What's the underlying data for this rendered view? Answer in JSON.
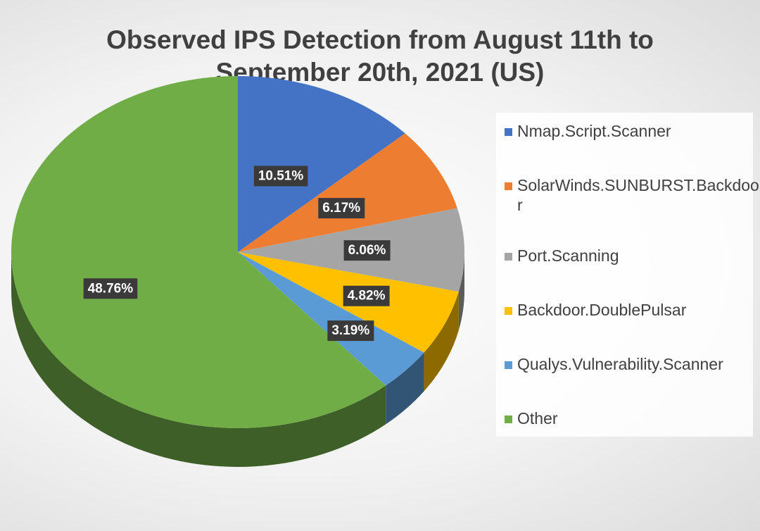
{
  "chart_data": {
    "type": "pie",
    "title": "Observed IPS Detection from August 11th to September 20th, 2021 (US)",
    "categories": [
      "Nmap.Script.Scanner",
      "SolarWinds.SUNBURST.Backdoor",
      "Port.Scanning",
      "Backdoor.DoublePulsar",
      "Qualys.Vulnerability.Scanner",
      "Other"
    ],
    "values": [
      10.51,
      6.17,
      6.06,
      4.82,
      3.19,
      48.76
    ],
    "value_labels": [
      "10.51%",
      "6.17%",
      "6.06%",
      "4.82%",
      "3.19%",
      "48.76%"
    ],
    "colors": [
      "#4472c4",
      "#ed7d31",
      "#a5a5a5",
      "#ffc000",
      "#5b9bd5",
      "#70ad47"
    ],
    "legend": "right"
  }
}
